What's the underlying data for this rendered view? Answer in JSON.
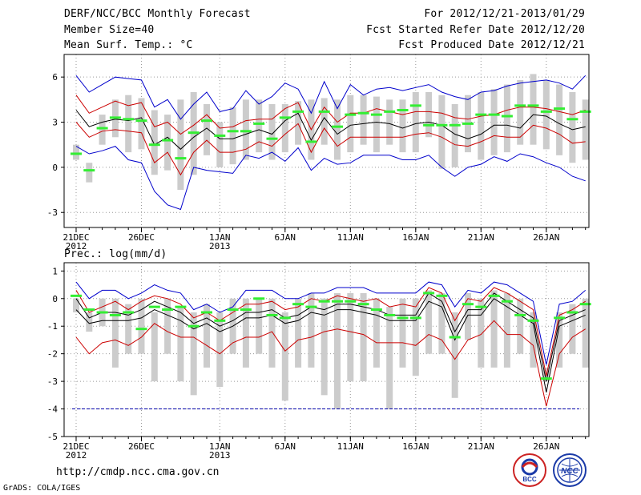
{
  "header": {
    "title": "DERF/NCC/BCC Monthly Forecast",
    "member_size": "Member Size=40",
    "variable_top": "Mean Surf. Temp.: °C",
    "period": "For 2012/12/21-2013/01/29",
    "fcst_started": "Fcst Started Refer Date 2012/12/20",
    "fcst_produced": "Fcst Produced Date 2012/12/21"
  },
  "footer": {
    "url": "http://cmdp.ncc.cma.gov.cn",
    "credit": "GrADS: COLA/IGES",
    "logo_left_text": "BCC",
    "logo_right_text": "NCC"
  },
  "colors": {
    "max_line": "#0000cc",
    "min_line": "#cc0000",
    "ensemble_mean": "#000000",
    "box": "#cccccc",
    "observed": "#33ee33",
    "reference": "#0000aa"
  },
  "chart_data": [
    {
      "type": "line",
      "title": "Mean Surf. Temp.: °C",
      "x": [
        1,
        2,
        3,
        4,
        5,
        6,
        7,
        8,
        9,
        10,
        11,
        12,
        13,
        14,
        15,
        16,
        17,
        18,
        19,
        20,
        21,
        22,
        23,
        24,
        25,
        26,
        27,
        28,
        29,
        30,
        31,
        32,
        33,
        34,
        35,
        36,
        37,
        38,
        39,
        40
      ],
      "xticks": [
        {
          "day": 1,
          "label": "21DEC",
          "sub": "2012"
        },
        {
          "day": 6,
          "label": "26DEC",
          "sub": ""
        },
        {
          "day": 12,
          "label": "1JAN",
          "sub": "2013"
        },
        {
          "day": 17,
          "label": "6JAN",
          "sub": ""
        },
        {
          "day": 22,
          "label": "11JAN",
          "sub": ""
        },
        {
          "day": 27,
          "label": "16JAN",
          "sub": ""
        },
        {
          "day": 32,
          "label": "21JAN",
          "sub": ""
        },
        {
          "day": 37,
          "label": "26JAN",
          "sub": ""
        }
      ],
      "ylim": [
        -4,
        7.5
      ],
      "yticks": [
        -3,
        0,
        3,
        6
      ],
      "series": [
        {
          "name": "max",
          "values": [
            6.1,
            5.0,
            5.5,
            6.0,
            5.9,
            5.8,
            4.0,
            4.5,
            3.2,
            4.2,
            5.0,
            3.7,
            3.9,
            5.1,
            4.2,
            4.7,
            5.6,
            5.2,
            3.6,
            5.7,
            3.9,
            5.5,
            4.8,
            5.2,
            5.3,
            5.1,
            5.3,
            5.5,
            5.0,
            4.7,
            4.5,
            5.0,
            5.1,
            5.4,
            5.6,
            5.7,
            5.8,
            5.6,
            5.2,
            6.1
          ]
        },
        {
          "name": "p90",
          "values": [
            4.8,
            3.6,
            4.0,
            4.4,
            4.1,
            4.3,
            2.7,
            3.0,
            2.2,
            2.8,
            3.5,
            2.6,
            2.7,
            3.1,
            3.2,
            3.2,
            3.9,
            4.3,
            2.5,
            4.0,
            3.0,
            3.6,
            3.6,
            3.9,
            3.7,
            3.5,
            3.7,
            3.7,
            3.6,
            3.3,
            3.2,
            3.4,
            3.5,
            3.8,
            4.0,
            4.0,
            3.9,
            3.7,
            3.5,
            3.8
          ]
        },
        {
          "name": "mean",
          "values": [
            3.8,
            2.7,
            3.0,
            3.2,
            3.1,
            3.3,
            1.5,
            2.0,
            1.2,
            2.0,
            2.6,
            1.9,
            1.9,
            2.2,
            2.5,
            2.2,
            3.1,
            3.6,
            1.8,
            3.3,
            2.2,
            2.8,
            2.9,
            3.0,
            2.9,
            2.6,
            2.9,
            3.0,
            2.8,
            2.2,
            1.9,
            2.2,
            2.8,
            2.8,
            2.6,
            3.5,
            3.4,
            2.9,
            2.5,
            2.7
          ]
        },
        {
          "name": "p10",
          "values": [
            3.0,
            2.0,
            2.4,
            2.5,
            2.4,
            2.3,
            0.3,
            1.0,
            -0.5,
            1.0,
            1.8,
            1.0,
            1.0,
            1.2,
            1.7,
            1.4,
            2.2,
            2.9,
            1.0,
            2.6,
            1.4,
            2.0,
            2.0,
            2.0,
            2.0,
            2.0,
            2.2,
            2.3,
            2.0,
            1.5,
            1.4,
            1.7,
            2.1,
            2.0,
            2.0,
            2.8,
            2.6,
            2.2,
            1.6,
            1.7
          ]
        },
        {
          "name": "min",
          "values": [
            1.4,
            0.9,
            1.1,
            1.4,
            0.5,
            0.3,
            -1.6,
            -2.5,
            -2.8,
            0.0,
            -0.2,
            -0.3,
            -0.4,
            0.8,
            0.6,
            1.0,
            0.4,
            1.3,
            -0.2,
            0.6,
            0.2,
            0.3,
            0.8,
            0.8,
            0.8,
            0.5,
            0.5,
            0.8,
            0.0,
            -0.6,
            0.0,
            0.2,
            0.7,
            0.4,
            0.9,
            0.7,
            0.3,
            0.0,
            -0.6,
            -0.9
          ]
        }
      ],
      "box_low": [
        0.5,
        -1.0,
        1.5,
        2.0,
        1.0,
        1.2,
        -0.5,
        -0.2,
        -1.5,
        -0.5,
        0.8,
        0.0,
        0.2,
        0.5,
        1.0,
        0.5,
        1.0,
        1.5,
        0.5,
        1.5,
        0.5,
        1.0,
        1.5,
        1.0,
        1.5,
        1.0,
        1.0,
        2.0,
        -0.1,
        0.0,
        1.0,
        0.5,
        0.8,
        1.0,
        1.5,
        1.5,
        1.2,
        0.8,
        0.3,
        0.5
      ],
      "box_high": [
        1.5,
        0.3,
        3.5,
        4.5,
        4.8,
        4.6,
        3.8,
        3.5,
        4.5,
        5.0,
        4.2,
        3.0,
        4.0,
        4.5,
        4.5,
        4.2,
        4.2,
        4.4,
        4.5,
        4.6,
        4.5,
        4.8,
        4.8,
        4.7,
        4.5,
        4.5,
        5.0,
        5.0,
        4.8,
        4.2,
        4.8,
        5.0,
        5.2,
        5.5,
        5.8,
        6.2,
        5.8,
        5.5,
        5.0,
        4.5
      ],
      "observed": [
        0.9,
        -0.2,
        2.6,
        3.3,
        3.2,
        3.1,
        1.5,
        1.8,
        0.6,
        2.3,
        3.1,
        2.1,
        2.4,
        2.4,
        2.9,
        1.9,
        3.3,
        3.7,
        1.7,
        3.7,
        2.7,
        3.5,
        3.6,
        3.5,
        3.7,
        3.8,
        4.1,
        2.8,
        2.8,
        2.8,
        2.9,
        3.5,
        3.5,
        3.4,
        4.1,
        4.1,
        3.7,
        3.9,
        3.2,
        3.7
      ]
    },
    {
      "type": "line",
      "title": "Prec.: log(mm/d)",
      "x": [
        1,
        2,
        3,
        4,
        5,
        6,
        7,
        8,
        9,
        10,
        11,
        12,
        13,
        14,
        15,
        16,
        17,
        18,
        19,
        20,
        21,
        22,
        23,
        24,
        25,
        26,
        27,
        28,
        29,
        30,
        31,
        32,
        33,
        34,
        35,
        36,
        37,
        38,
        39,
        40
      ],
      "xticks": [
        {
          "day": 1,
          "label": "21DEC",
          "sub": "2012"
        },
        {
          "day": 6,
          "label": "26DEC",
          "sub": ""
        },
        {
          "day": 12,
          "label": "1JAN",
          "sub": "2013"
        },
        {
          "day": 17,
          "label": "6JAN",
          "sub": ""
        },
        {
          "day": 22,
          "label": "11JAN",
          "sub": ""
        },
        {
          "day": 27,
          "label": "16JAN",
          "sub": ""
        },
        {
          "day": 32,
          "label": "21JAN",
          "sub": ""
        },
        {
          "day": 37,
          "label": "26JAN",
          "sub": ""
        }
      ],
      "ylim": [
        -5,
        1.3
      ],
      "yticks": [
        -5,
        -4,
        -3,
        -2,
        -1,
        0,
        1
      ],
      "reference_line": -4,
      "series": [
        {
          "name": "max",
          "values": [
            0.6,
            0.0,
            0.3,
            0.3,
            0.0,
            0.2,
            0.5,
            0.3,
            0.2,
            -0.4,
            -0.2,
            -0.5,
            -0.3,
            0.3,
            0.3,
            0.3,
            0.0,
            0.0,
            0.2,
            0.2,
            0.4,
            0.4,
            0.4,
            0.2,
            0.2,
            0.2,
            0.2,
            0.6,
            0.5,
            -0.3,
            0.3,
            0.2,
            0.6,
            0.5,
            0.2,
            -0.1,
            -2.4,
            -0.2,
            -0.1,
            0.3
          ]
        },
        {
          "name": "p90",
          "values": [
            0.3,
            -0.5,
            -0.3,
            -0.1,
            -0.4,
            -0.1,
            0.1,
            0.0,
            -0.2,
            -0.7,
            -0.5,
            -0.8,
            -0.5,
            -0.2,
            -0.2,
            -0.1,
            -0.4,
            -0.3,
            0.0,
            -0.1,
            0.1,
            0.0,
            -0.1,
            0.0,
            -0.3,
            -0.2,
            -0.3,
            0.4,
            0.2,
            -0.8,
            0.0,
            -0.1,
            0.4,
            0.2,
            -0.1,
            -0.4,
            -2.8,
            -0.6,
            -0.4,
            -0.1
          ]
        },
        {
          "name": "mean",
          "values": [
            0.0,
            -0.7,
            -0.5,
            -0.5,
            -0.6,
            -0.4,
            -0.1,
            -0.3,
            -0.5,
            -0.9,
            -0.7,
            -1.0,
            -0.8,
            -0.5,
            -0.5,
            -0.4,
            -0.7,
            -0.6,
            -0.3,
            -0.4,
            -0.2,
            -0.2,
            -0.3,
            -0.4,
            -0.6,
            -0.6,
            -0.6,
            0.2,
            -0.1,
            -1.2,
            -0.4,
            -0.4,
            0.2,
            -0.1,
            -0.4,
            -0.7,
            -3.0,
            -0.8,
            -0.6,
            -0.4
          ]
        },
        {
          "name": "p10",
          "values": [
            -0.4,
            -0.9,
            -0.8,
            -0.8,
            -0.8,
            -0.7,
            -0.4,
            -0.6,
            -0.8,
            -1.1,
            -0.9,
            -1.2,
            -1.0,
            -0.7,
            -0.7,
            -0.6,
            -0.9,
            -0.8,
            -0.5,
            -0.6,
            -0.4,
            -0.4,
            -0.5,
            -0.6,
            -0.8,
            -0.8,
            -0.8,
            -0.1,
            -0.3,
            -1.5,
            -0.6,
            -0.6,
            0.0,
            -0.3,
            -0.6,
            -0.9,
            -3.4,
            -1.0,
            -0.8,
            -0.6
          ]
        },
        {
          "name": "min",
          "values": [
            -1.4,
            -2.0,
            -1.6,
            -1.5,
            -1.7,
            -1.4,
            -0.9,
            -1.2,
            -1.4,
            -1.4,
            -1.7,
            -2.0,
            -1.6,
            -1.4,
            -1.4,
            -1.2,
            -1.9,
            -1.5,
            -1.4,
            -1.2,
            -1.1,
            -1.2,
            -1.3,
            -1.6,
            -1.6,
            -1.6,
            -1.7,
            -1.3,
            -1.5,
            -2.2,
            -1.5,
            -1.3,
            -0.8,
            -1.3,
            -1.3,
            -1.7,
            -3.9,
            -2.0,
            -1.4,
            -1.1
          ]
        }
      ],
      "box_low": [
        -0.5,
        -1.2,
        -1.0,
        -2.5,
        -2.0,
        -2.0,
        -3.0,
        -2.0,
        -3.0,
        -3.5,
        -2.5,
        -3.2,
        -2.0,
        -2.5,
        -2.0,
        -2.5,
        -3.7,
        -2.5,
        -2.5,
        -3.5,
        -4.0,
        -3.0,
        -3.0,
        -2.5,
        -4.0,
        -2.5,
        -2.8,
        -2.0,
        -2.0,
        -3.6,
        -1.5,
        -2.5,
        -2.5,
        -2.5,
        -2.0,
        -2.5,
        -3.0,
        -2.5,
        -2.0,
        -2.5
      ],
      "box_high": [
        0.0,
        -0.5,
        0.0,
        0.0,
        -0.2,
        0.0,
        -0.5,
        0.0,
        -0.3,
        -0.5,
        -0.2,
        -0.5,
        0.0,
        0.0,
        0.0,
        0.0,
        -0.5,
        0.0,
        0.2,
        0.0,
        0.2,
        0.2,
        0.2,
        0.0,
        -0.3,
        0.0,
        0.0,
        0.3,
        0.2,
        -0.5,
        0.2,
        0.0,
        0.3,
        0.2,
        0.0,
        -0.5,
        -2.5,
        -0.5,
        -0.2,
        0.0
      ],
      "observed": [
        0.1,
        -0.4,
        -0.5,
        -0.6,
        -0.5,
        -1.1,
        -0.3,
        -0.4,
        -0.3,
        -1.0,
        -0.5,
        -0.8,
        -0.4,
        -0.4,
        0.0,
        -0.6,
        -0.7,
        -0.2,
        -0.3,
        -0.1,
        -0.1,
        -0.1,
        -0.2,
        -0.4,
        -0.6,
        -0.7,
        -0.7,
        0.2,
        0.1,
        -1.4,
        -0.2,
        -0.3,
        0.1,
        -0.1,
        -0.6,
        -0.8,
        -2.9,
        -0.7,
        -0.5,
        -0.2
      ]
    }
  ]
}
